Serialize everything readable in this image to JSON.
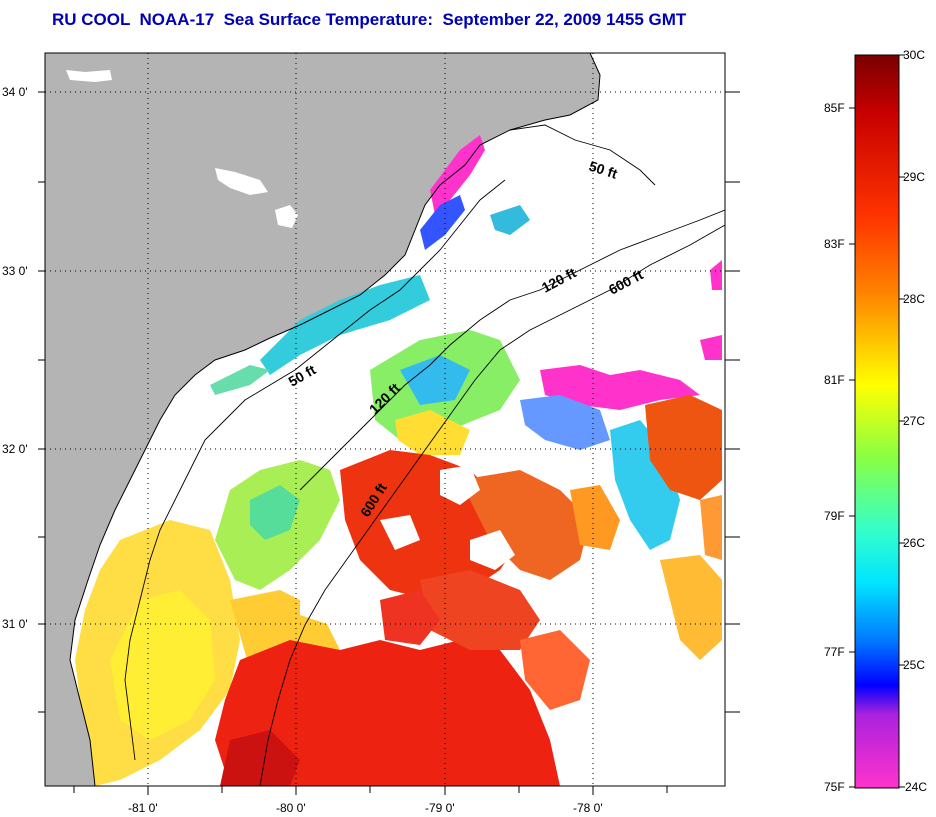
{
  "title": "RU COOL  NOAA-17  Sea Surface Temperature:  September 22, 2009 1455 GMT",
  "map": {
    "lat_ticks": [
      "34 0'",
      "33 0'",
      "32 0'",
      "31 0'"
    ],
    "lon_ticks": [
      "-81 0'",
      "-80 0'",
      "-79 0'",
      "-78 0'"
    ],
    "contour_labels": [
      "50 ft",
      "120 ft",
      "600 ft",
      "50 ft",
      "120 ft",
      "600 ft"
    ]
  },
  "colorbar": {
    "fahrenheit_labels": [
      "85F",
      "83F",
      "81F",
      "79F",
      "77F",
      "75F"
    ],
    "celsius_labels": [
      "30C",
      "29C",
      "28C",
      "27C",
      "26C",
      "25C",
      "24C"
    ]
  },
  "colors": {
    "title": "#0000b4",
    "land": "#b4b4b4",
    "no_data": "#ffffff"
  }
}
